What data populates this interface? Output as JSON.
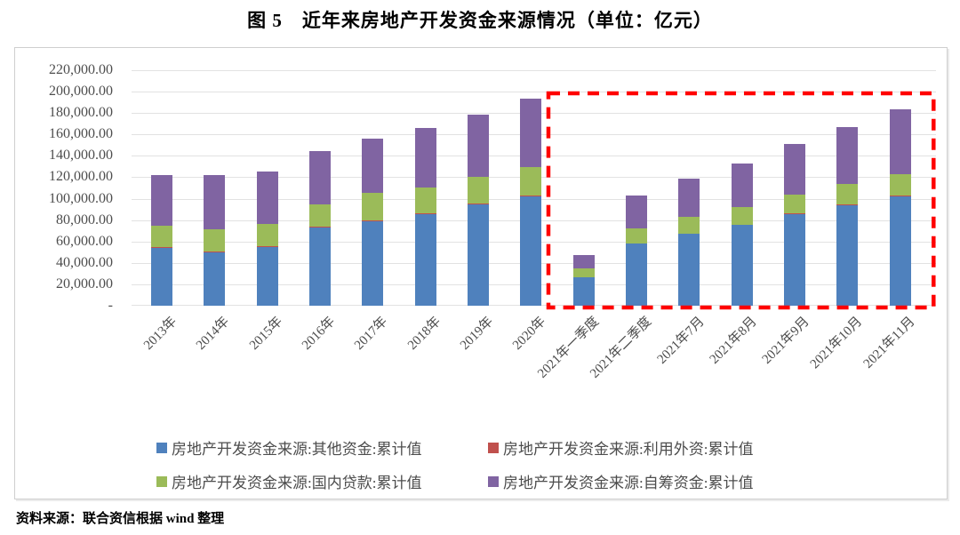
{
  "page": {
    "title": "图 5　近年来房地产开发资金来源情况（单位：亿元）",
    "source_note": "资料来源：联合资信根据 wind 整理"
  },
  "chart_data": {
    "type": "bar",
    "stacked": true,
    "title": "图 5　近年来房地产开发资金来源情况（单位：亿元）",
    "unit": "亿元",
    "categories": [
      "2013年",
      "2014年",
      "2015年",
      "2016年",
      "2017年",
      "2018年",
      "2019年",
      "2020年",
      "2021年一季度",
      "2021年二季度",
      "2021年7月",
      "2021年8月",
      "2021年9月",
      "2021年10月",
      "2021年11月"
    ],
    "series": [
      {
        "name": "房地产开发资金来源:其他资金:累计值",
        "color": "#4F81BD",
        "values": [
          54500,
          49700,
          55700,
          73400,
          79800,
          86000,
          95000,
          102900,
          26400,
          58400,
          67500,
          75300,
          86100,
          94500,
          102600
        ]
      },
      {
        "name": "房地产开发资金来源:利用外资:累计值",
        "color": "#C0504D",
        "values": [
          530,
          640,
          300,
          140,
          170,
          110,
          180,
          190,
          20,
          50,
          50,
          60,
          80,
          90,
          100
        ]
      },
      {
        "name": "房地产开发资金来源:国内贷款:累计值",
        "color": "#9BBB59",
        "values": [
          19700,
          21200,
          20200,
          21500,
          25200,
          24000,
          25200,
          26700,
          8100,
          13500,
          15200,
          16700,
          18000,
          19100,
          20300
        ]
      },
      {
        "name": "房地产开发资金来源:自筹资金:累计值",
        "color": "#8064A2",
        "values": [
          47400,
          50400,
          48900,
          49100,
          50900,
          55800,
          58200,
          63400,
          13000,
          31000,
          36200,
          41000,
          47300,
          52900,
          60400
        ]
      }
    ],
    "totals": [
      122130,
      121940,
      125100,
      144140,
      156070,
      165910,
      178580,
      193190,
      47520,
      102950,
      118950,
      133060,
      151480,
      166590,
      183400
    ],
    "xlabel": "",
    "ylabel": "",
    "ylim": [
      0,
      220000
    ],
    "y_tick_step": 20000,
    "y_tick_labels": [
      "-",
      "20,000.00",
      "40,000.00",
      "60,000.00",
      "80,000.00",
      "100,000.00",
      "120,000.00",
      "140,000.00",
      "160,000.00",
      "180,000.00",
      "200,000.00",
      "220,000.00"
    ],
    "grid": true,
    "legend_position": "bottom",
    "highlight_box": {
      "covers_categories": [
        "2021年一季度",
        "2021年11月"
      ],
      "from_index": 8,
      "to_index": 14,
      "color": "#FF0000",
      "style": "dashed"
    }
  },
  "appearance": {
    "gridline_color": "#e2e2e2",
    "axis_text_color": "#4d4d4d",
    "panel_border_color": "#cfcfcf"
  }
}
